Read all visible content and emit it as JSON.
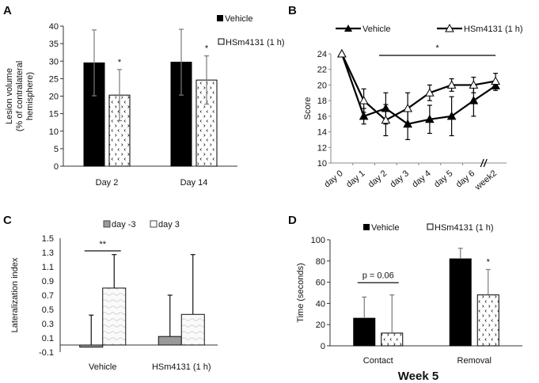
{
  "chart_data": [
    {
      "panel": "A",
      "type": "bar",
      "title": "",
      "xlabel": "",
      "ylabel": "Lesion volume (% of contralateral hemisphere)",
      "ylabel_lines": [
        "Lesion volume",
        "(% of contralateral",
        "hemisphere)"
      ],
      "ylim": [
        0,
        40
      ],
      "yticks": [
        0,
        5,
        10,
        15,
        20,
        25,
        30,
        35,
        40
      ],
      "categories": [
        "Day 2",
        "Day 14"
      ],
      "series": [
        {
          "name": "Vehicle",
          "pattern": "solid-black",
          "values": [
            29.5,
            29.7
          ],
          "errors": [
            9.4,
            9.4
          ]
        },
        {
          "name": "HSm4131 (1 h)",
          "pattern": "dotted-chevrons",
          "values": [
            20.3,
            24.6
          ],
          "errors": [
            7.3,
            6.9
          ]
        }
      ],
      "annotations": [
        {
          "category": "Day 2",
          "series": "HSm4131 (1 h)",
          "text": "*"
        },
        {
          "category": "Day 14",
          "series": "HSm4131 (1 h)",
          "text": "*"
        }
      ],
      "legend": "top-right",
      "grid": false
    },
    {
      "panel": "B",
      "type": "line",
      "title": "",
      "xlabel": "",
      "ylabel": "Score",
      "ylim": [
        10,
        24
      ],
      "yticks": [
        10,
        12,
        14,
        16,
        18,
        20,
        22,
        24
      ],
      "x": [
        "day 0",
        "day 1",
        "day 2",
        "day 3",
        "day 4",
        "day 5",
        "day 6",
        "week2"
      ],
      "series": [
        {
          "name": "Vehicle",
          "marker": "filled-triangle",
          "values": [
            24,
            16,
            17,
            15,
            15.6,
            16,
            18,
            19.9
          ],
          "errors": [
            0,
            1,
            2,
            2,
            1.8,
            2.5,
            2,
            0.6
          ]
        },
        {
          "name": "HSm4131 (1 h)",
          "marker": "open-triangle",
          "values": [
            24,
            18,
            15.5,
            17,
            19,
            20,
            20,
            20.5
          ],
          "errors": [
            0,
            1.5,
            2,
            2,
            1,
            0.8,
            1,
            1
          ]
        }
      ],
      "annotations": [
        {
          "text": "*",
          "from": "day 2",
          "to": "week2",
          "type": "significance-bar"
        }
      ],
      "axis_break_between": [
        "day 6",
        "week2"
      ],
      "legend": "top",
      "grid": false
    },
    {
      "panel": "C",
      "type": "bar",
      "title": "",
      "xlabel": "",
      "ylabel": "Lateralization index",
      "ylim": [
        -0.1,
        1.5
      ],
      "yticks": [
        -0.1,
        0.1,
        0.3,
        0.5,
        0.7,
        0.9,
        1.1,
        1.3,
        1.5
      ],
      "categories": [
        "Vehicle",
        "HSm4131 (1 h)"
      ],
      "series": [
        {
          "name": "day -3",
          "pattern": "solid-gray",
          "values": [
            -0.03,
            0.12
          ],
          "errors": [
            0.45,
            0.58
          ]
        },
        {
          "name": "day 3",
          "pattern": "wavy-light",
          "values": [
            0.8,
            0.43
          ],
          "errors": [
            0.47,
            0.84
          ]
        }
      ],
      "annotations": [
        {
          "category": "Vehicle",
          "text": "**",
          "type": "significance-bar"
        }
      ],
      "legend": "top",
      "grid": false
    },
    {
      "panel": "D",
      "type": "bar",
      "title": "Week 5",
      "xlabel": "Week 5",
      "ylabel": "Time (seconds)",
      "ylim": [
        0,
        100
      ],
      "yticks": [
        0,
        20,
        40,
        60,
        80,
        100
      ],
      "categories": [
        "Contact",
        "Removal"
      ],
      "series": [
        {
          "name": "Vehicle",
          "pattern": "solid-black",
          "values": [
            26,
            82
          ],
          "errors": [
            20,
            10
          ]
        },
        {
          "name": "HSm4131 (1 h)",
          "pattern": "dotted-chevrons",
          "values": [
            12,
            48
          ],
          "errors": [
            36,
            24
          ]
        }
      ],
      "annotations": [
        {
          "category": "Contact",
          "text": "p = 0.06",
          "type": "significance-bar"
        },
        {
          "category": "Removal",
          "series": "HSm4131 (1 h)",
          "text": "*"
        }
      ],
      "legend": "top",
      "grid": false
    }
  ],
  "colors": {
    "vehicle": "#000000",
    "gray_bar": "#9a9a9a",
    "error_bar_gray": "#7a7a7a",
    "pattern_fill": "#ffffff"
  }
}
